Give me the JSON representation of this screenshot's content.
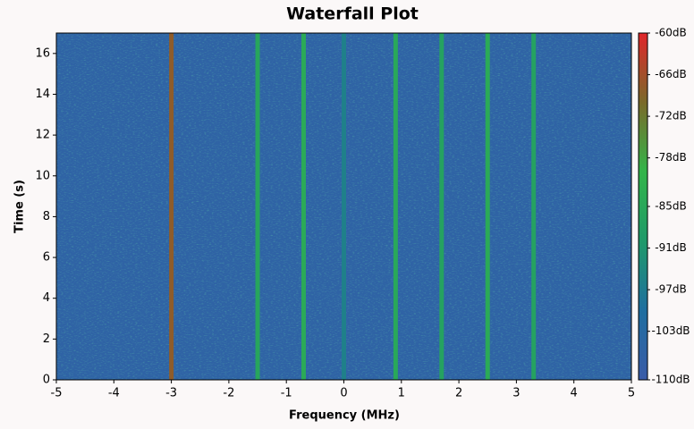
{
  "chart_data": {
    "type": "waterfall",
    "title": "Waterfall Plot",
    "x_label": "Frequency (MHz)",
    "y_label": "Time (s)",
    "xlim": [
      -5,
      5
    ],
    "xticks": [
      -5,
      -4,
      -3,
      -2,
      -1,
      0,
      1,
      2,
      3,
      4,
      5
    ],
    "ylim": [
      0,
      17
    ],
    "yticks": [
      0,
      2,
      4,
      6,
      8,
      10,
      12,
      14,
      16
    ],
    "noise_floor": -106,
    "signals": [
      {
        "x": -3,
        "level": -68
      },
      {
        "x": -1.5,
        "level": -86
      },
      {
        "x": -0.7,
        "level": -84
      },
      {
        "x": 0,
        "level": -96
      },
      {
        "x": 0.9,
        "level": -85
      },
      {
        "x": 1.7,
        "level": -87
      },
      {
        "x": 2.5,
        "level": -84
      },
      {
        "x": 3.3,
        "level": -87
      }
    ],
    "clim": [
      -110,
      -60
    ],
    "colormap": [
      "#3a5ba8",
      "#1f6fa0",
      "#1f9a6a",
      "#33b54a",
      "#7a6a2a",
      "#e0262a"
    ],
    "cticks": [
      {
        "value": -60,
        "label": "-60dB"
      },
      {
        "value": -66,
        "label": "-66dB"
      },
      {
        "value": -72,
        "label": "-72dB"
      },
      {
        "value": -78,
        "label": "-78dB"
      },
      {
        "value": -85,
        "label": "-85dB"
      },
      {
        "value": -91,
        "label": "-91dB"
      },
      {
        "value": -97,
        "label": "-97dB"
      },
      {
        "value": -103,
        "label": "-103dB"
      },
      {
        "value": -110,
        "label": "-110dB"
      }
    ]
  }
}
